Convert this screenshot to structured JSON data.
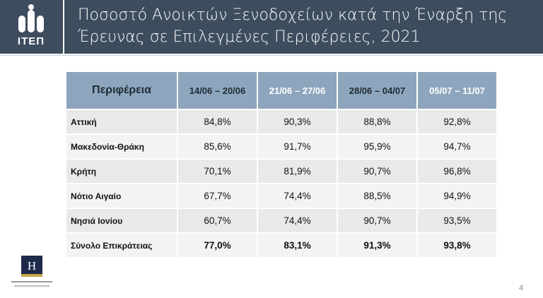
{
  "header": {
    "logo": "ΙΤΕΠ",
    "title": "Ποσοστό Ανοικτών Ξενοδοχείων κατά την Έναρξη της Έρευνας σε Επιλεγμένες Περιφέρειες, 2021"
  },
  "table": {
    "columns": [
      "Περιφέρεια",
      "14/06 – 20/06",
      "21/06 – 27/06",
      "28/06 – 04/07",
      "05/07 – 11/07"
    ],
    "rows": [
      [
        "Αττική",
        "84,8%",
        "90,3%",
        "88,8%",
        "92,8%"
      ],
      [
        "Μακεδονία-Θράκη",
        "85,6%",
        "91,7%",
        "95,9%",
        "94,7%"
      ],
      [
        "Κρήτη",
        "70,1%",
        "81,9%",
        "90,7%",
        "96,8%"
      ],
      [
        "Νότιο Αιγαίο",
        "67,7%",
        "74,4%",
        "88,5%",
        "94,9%"
      ],
      [
        "Νησιά Ιονίου",
        "60,7%",
        "74,4%",
        "90,7%",
        "93,5%"
      ],
      [
        "Σύνολο Επικράτειας",
        "77,0%",
        "83,1%",
        "91,3%",
        "93,8%"
      ]
    ]
  },
  "page_number": "4"
}
